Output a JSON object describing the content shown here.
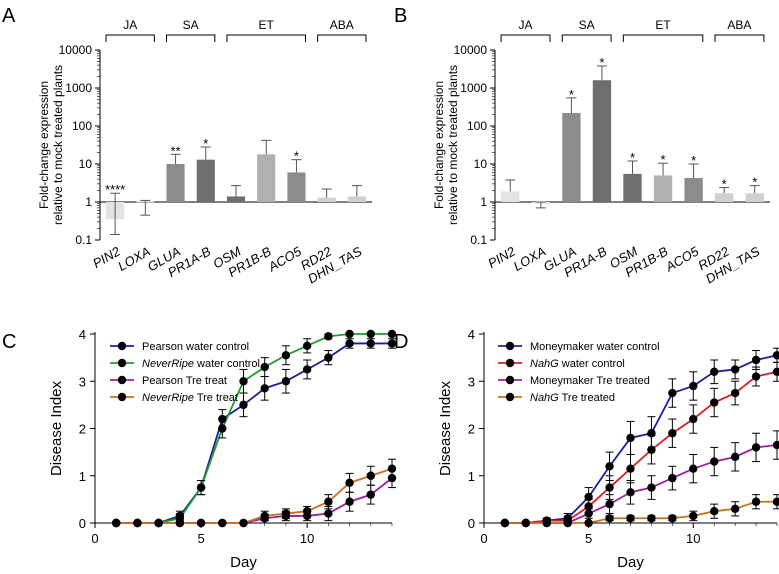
{
  "colors": {
    "bar_light": "#d9d9d9",
    "bar_mid": "#a6a6a6",
    "bar_dark": "#8c8c8c",
    "bar_darker": "#6e6e6e",
    "bar_darkest": "#595959",
    "blue": "#1f1f9e",
    "green": "#1f9e2e",
    "purple": "#9e1f9e",
    "orange": "#c8731f",
    "red": "#d42020",
    "marker": "#000000"
  },
  "chart_data": [
    {
      "panel": "A",
      "type": "bar",
      "ylabel_lines": [
        "Fold-change expression",
        "relative to mock treated plants"
      ],
      "yscale": "log",
      "ylim": [
        0.1,
        10000
      ],
      "yticks": [
        "0.1",
        "1",
        "10",
        "100",
        "1000",
        "10000"
      ],
      "categories": [
        "PIN2",
        "LOXA",
        "GLUA",
        "PR1A-B",
        "OSM",
        "PR1B-B",
        "ACO5",
        "RD22",
        "DHN_TAS"
      ],
      "values": [
        0.35,
        1.05,
        10,
        13,
        1.4,
        18,
        6,
        1.3,
        1.4
      ],
      "err_upper": [
        1.7,
        1.1,
        18,
        28,
        2.7,
        42,
        13,
        2.2,
        2.7
      ],
      "err_lower": [
        0.14,
        0.45,
        0,
        0,
        0,
        0,
        0,
        0,
        0
      ],
      "shades": [
        "#e3e3e3",
        "#e3e3e3",
        "#8c8c8c",
        "#6e6e6e",
        "#6e6e6e",
        "#b0b0b0",
        "#8c8c8c",
        "#d0d0d0",
        "#d0d0d0"
      ],
      "significance": [
        "****",
        "",
        "**",
        "*",
        "",
        "",
        "*",
        "",
        ""
      ],
      "groups": [
        {
          "label": "JA",
          "from": 0,
          "to": 1
        },
        {
          "label": "SA",
          "from": 2,
          "to": 3
        },
        {
          "label": "ET",
          "from": 4,
          "to": 6
        },
        {
          "label": "ABA",
          "from": 7,
          "to": 8
        }
      ]
    },
    {
      "panel": "B",
      "type": "bar",
      "ylabel_lines": [
        "Fold-change expression",
        "relative to mock treated plants"
      ],
      "yscale": "log",
      "ylim": [
        0.1,
        10000
      ],
      "yticks": [
        "0.1",
        "1",
        "10",
        "100",
        "1000",
        "10000"
      ],
      "categories": [
        "PIN2",
        "LOXA",
        "GLUA",
        "PR1A-B",
        "OSM",
        "PR1B-B",
        "ACO5",
        "RD22",
        "DHN_TAS"
      ],
      "values": [
        1.9,
        0.9,
        220,
        1600,
        5.5,
        5,
        4.3,
        1.7,
        1.7
      ],
      "err_upper": [
        3.8,
        1.0,
        550,
        3800,
        12,
        10.5,
        10,
        2.4,
        2.7
      ],
      "err_lower": [
        0,
        0.7,
        0,
        0,
        0,
        0,
        0,
        0,
        0
      ],
      "shades": [
        "#e3e3e3",
        "#e3e3e3",
        "#8c8c8c",
        "#6e6e6e",
        "#6e6e6e",
        "#b0b0b0",
        "#8c8c8c",
        "#d0d0d0",
        "#d0d0d0"
      ],
      "significance": [
        "",
        "",
        "*",
        "*",
        "*",
        "*",
        "*",
        "*",
        "*"
      ],
      "groups": [
        {
          "label": "JA",
          "from": 0,
          "to": 1
        },
        {
          "label": "SA",
          "from": 2,
          "to": 3
        },
        {
          "label": "ET",
          "from": 4,
          "to": 6
        },
        {
          "label": "ABA",
          "from": 7,
          "to": 8
        }
      ]
    },
    {
      "panel": "C",
      "type": "line",
      "xlabel": "Day",
      "ylabel": "Disease Index",
      "xlim": [
        0,
        14
      ],
      "ylim": [
        0,
        4
      ],
      "xticks": [
        0,
        5,
        10
      ],
      "yticks": [
        0,
        1,
        2,
        3,
        4
      ],
      "x": [
        1,
        2,
        3,
        4,
        5,
        6,
        7,
        8,
        9,
        10,
        11,
        12,
        13,
        14
      ],
      "series": [
        {
          "name_prefix": "Pearson",
          "name_italic": "",
          "name_suffix": " water control",
          "color": "#1f1f9e",
          "values": [
            0,
            0,
            0,
            0.15,
            0.75,
            2.2,
            2.5,
            2.85,
            3.0,
            3.25,
            3.5,
            3.8,
            3.8,
            3.8
          ],
          "errors": [
            0,
            0,
            0,
            0.1,
            0.15,
            0.2,
            0.25,
            0.25,
            0.25,
            0.2,
            0.15,
            0.1,
            0.1,
            0.1
          ]
        },
        {
          "name_prefix": "",
          "name_italic": "NeverRipe",
          "name_suffix": " water control",
          "color": "#1f9e2e",
          "values": [
            0,
            0,
            0,
            0.1,
            0.75,
            2.0,
            3.0,
            3.3,
            3.55,
            3.75,
            3.95,
            4.0,
            4.0,
            4.0
          ],
          "errors": [
            0,
            0,
            0,
            0.1,
            0.15,
            0.2,
            0.25,
            0.2,
            0.2,
            0.15,
            0.05,
            0,
            0,
            0
          ]
        },
        {
          "name_prefix": "Pearson Tre treat",
          "name_italic": "",
          "name_suffix": "",
          "color": "#9e1f9e",
          "values": [
            0,
            0,
            0,
            0,
            0,
            0,
            0,
            0.1,
            0.15,
            0.15,
            0.2,
            0.45,
            0.6,
            0.95
          ],
          "errors": [
            0,
            0,
            0,
            0,
            0,
            0,
            0,
            0.05,
            0.1,
            0.1,
            0.15,
            0.2,
            0.2,
            0.2
          ]
        },
        {
          "name_prefix": "",
          "name_italic": "NeverRipe",
          "name_suffix": " Tre treat",
          "color": "#c8731f",
          "values": [
            0,
            0,
            0,
            0,
            0,
            0,
            0,
            0.15,
            0.2,
            0.25,
            0.45,
            0.85,
            1.0,
            1.15
          ],
          "errors": [
            0,
            0,
            0,
            0,
            0,
            0,
            0,
            0.1,
            0.1,
            0.1,
            0.15,
            0.2,
            0.2,
            0.2
          ]
        }
      ]
    },
    {
      "panel": "D",
      "type": "line",
      "xlabel": "Day",
      "ylabel": "Disease Index",
      "xlim": [
        0,
        14
      ],
      "ylim": [
        0,
        4
      ],
      "xticks": [
        0,
        5,
        10
      ],
      "yticks": [
        0,
        1,
        2,
        3,
        4
      ],
      "x": [
        1,
        2,
        3,
        4,
        5,
        6,
        7,
        8,
        9,
        10,
        11,
        12,
        13,
        14
      ],
      "series": [
        {
          "name_prefix": "Moneymaker water control",
          "name_italic": "",
          "name_suffix": "",
          "color": "#1f1f9e",
          "values": [
            0,
            0,
            0.05,
            0.1,
            0.55,
            1.2,
            1.8,
            1.9,
            2.75,
            2.9,
            3.2,
            3.25,
            3.45,
            3.55
          ],
          "errors": [
            0,
            0,
            0.05,
            0.1,
            0.2,
            0.3,
            0.35,
            0.35,
            0.3,
            0.3,
            0.25,
            0.2,
            0.2,
            0.15
          ]
        },
        {
          "name_prefix": "",
          "name_italic": "NahG",
          "name_suffix": " water control",
          "color": "#d42020",
          "values": [
            0,
            0,
            0.05,
            0.05,
            0.35,
            0.75,
            1.15,
            1.55,
            1.9,
            2.2,
            2.55,
            2.75,
            3.1,
            3.2
          ],
          "errors": [
            0,
            0,
            0.05,
            0.05,
            0.15,
            0.25,
            0.3,
            0.3,
            0.3,
            0.3,
            0.3,
            0.25,
            0.2,
            0.2
          ]
        },
        {
          "name_prefix": "Moneymaker Tre treated",
          "name_italic": "",
          "name_suffix": "",
          "color": "#9e1f9e",
          "values": [
            0,
            0,
            0,
            0,
            0.2,
            0.4,
            0.65,
            0.75,
            0.95,
            1.15,
            1.3,
            1.4,
            1.6,
            1.65
          ],
          "errors": [
            0,
            0,
            0,
            0,
            0.1,
            0.2,
            0.25,
            0.25,
            0.25,
            0.3,
            0.3,
            0.3,
            0.3,
            0.3
          ]
        },
        {
          "name_prefix": "",
          "name_italic": "NahG",
          "name_suffix": " Tre treated",
          "color": "#c8731f",
          "values": [
            0,
            0,
            0,
            0,
            0,
            0.1,
            0.1,
            0.1,
            0.1,
            0.15,
            0.25,
            0.3,
            0.45,
            0.45
          ],
          "errors": [
            0,
            0,
            0,
            0,
            0,
            0.05,
            0.05,
            0.05,
            0.05,
            0.1,
            0.15,
            0.15,
            0.15,
            0.15
          ]
        }
      ]
    }
  ]
}
